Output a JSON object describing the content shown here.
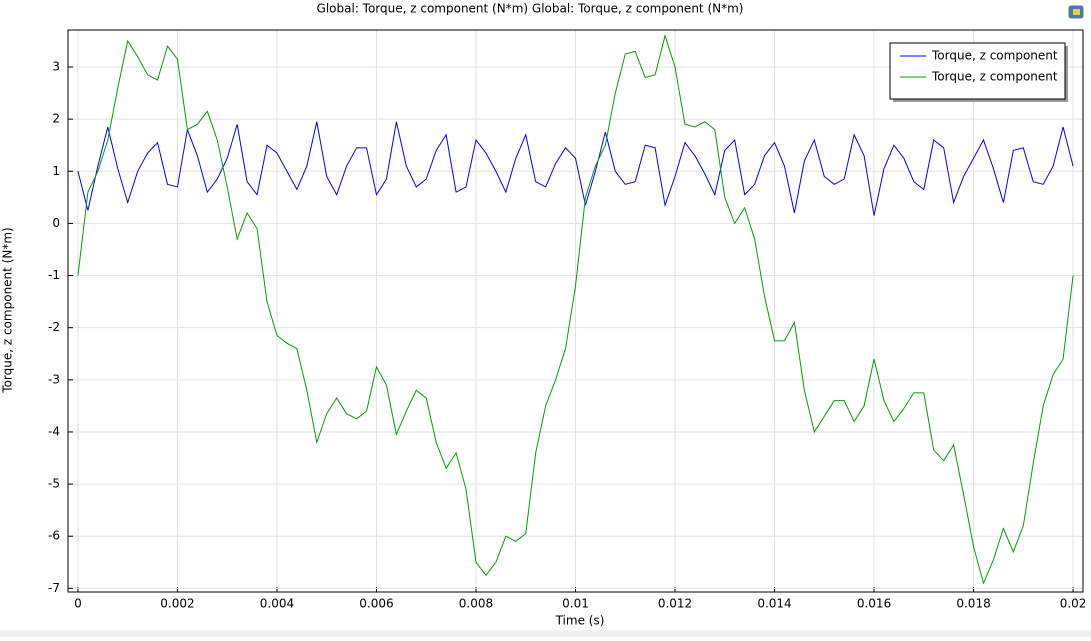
{
  "chart_data": {
    "type": "line",
    "title": "Global: Torque, z component (N*m)  Global: Torque, z component (N*m)",
    "x_label": "Time (s)",
    "y_label": "Torque, z component (N*m)",
    "x": [
      0,
      0.0002,
      0.0004,
      0.0006,
      0.0008,
      0.001,
      0.0012,
      0.0014,
      0.0016,
      0.0018,
      0.002,
      0.0022,
      0.0024,
      0.0026,
      0.0028,
      0.003,
      0.0032,
      0.0034,
      0.0036,
      0.0038,
      0.004,
      0.0042,
      0.0044,
      0.0046,
      0.0048,
      0.005,
      0.0052,
      0.0054,
      0.0056,
      0.0058,
      0.006,
      0.0062,
      0.0064,
      0.0066,
      0.0068,
      0.007,
      0.0072,
      0.0074,
      0.0076,
      0.0078,
      0.008,
      0.0082,
      0.0084,
      0.0086,
      0.0088,
      0.009,
      0.0092,
      0.0094,
      0.0096,
      0.0098,
      0.01,
      0.0102,
      0.0104,
      0.0106,
      0.0108,
      0.011,
      0.0112,
      0.0114,
      0.0116,
      0.0118,
      0.012,
      0.0122,
      0.0124,
      0.0126,
      0.0128,
      0.013,
      0.0132,
      0.0134,
      0.0136,
      0.0138,
      0.014,
      0.0142,
      0.0144,
      0.0146,
      0.0148,
      0.015,
      0.0152,
      0.0154,
      0.0156,
      0.0158,
      0.016,
      0.0162,
      0.0164,
      0.0166,
      0.0168,
      0.017,
      0.0172,
      0.0174,
      0.0176,
      0.0178,
      0.018,
      0.0182,
      0.0184,
      0.0186,
      0.0188,
      0.019,
      0.0192,
      0.0194,
      0.0196,
      0.0198,
      0.02
    ],
    "series": [
      {
        "name": "Torque, z component",
        "color": "#0000ff",
        "values": [
          1.0,
          0.25,
          1.1,
          1.85,
          1.05,
          0.4,
          1.0,
          1.35,
          1.55,
          0.75,
          0.7,
          1.8,
          1.3,
          0.6,
          0.85,
          1.25,
          1.9,
          0.8,
          0.55,
          1.5,
          1.35,
          1.0,
          0.65,
          1.1,
          1.95,
          0.9,
          0.55,
          1.1,
          1.45,
          1.45,
          0.55,
          0.85,
          1.95,
          1.1,
          0.7,
          0.85,
          1.4,
          1.7,
          0.6,
          0.7,
          1.6,
          1.35,
          1.0,
          0.6,
          1.25,
          1.7,
          0.8,
          0.7,
          1.15,
          1.45,
          1.25,
          0.35,
          1.0,
          1.75,
          1.0,
          0.75,
          0.8,
          1.5,
          1.45,
          0.35,
          0.9,
          1.55,
          1.3,
          0.95,
          0.55,
          1.4,
          1.6,
          0.55,
          0.75,
          1.3,
          1.55,
          1.1,
          0.2,
          1.2,
          1.6,
          0.9,
          0.75,
          0.85,
          1.7,
          1.3,
          0.15,
          1.05,
          1.5,
          1.25,
          0.8,
          0.65,
          1.6,
          1.45,
          0.4,
          0.9,
          1.25,
          1.6,
          1.05,
          0.4,
          1.4,
          1.45,
          0.8,
          0.75,
          1.1,
          1.85,
          1.1
        ]
      },
      {
        "name": "Torque, z component",
        "color": "#00a000",
        "values": [
          -1.0,
          0.6,
          1.0,
          1.6,
          2.6,
          3.5,
          3.2,
          2.85,
          2.75,
          3.4,
          3.15,
          1.8,
          1.9,
          2.15,
          1.6,
          0.7,
          -0.3,
          0.2,
          -0.1,
          -1.5,
          -2.15,
          -2.3,
          -2.4,
          -3.2,
          -4.2,
          -3.65,
          -3.35,
          -3.65,
          -3.75,
          -3.6,
          -2.75,
          -3.1,
          -4.05,
          -3.6,
          -3.2,
          -3.35,
          -4.2,
          -4.7,
          -4.4,
          -5.1,
          -6.5,
          -6.75,
          -6.5,
          -6.0,
          -6.1,
          -5.95,
          -4.4,
          -3.5,
          -3.0,
          -2.4,
          -1.2,
          0.5,
          1.1,
          1.5,
          2.5,
          3.25,
          3.3,
          2.8,
          2.85,
          3.6,
          3.0,
          1.9,
          1.85,
          1.95,
          1.8,
          0.5,
          0.0,
          0.3,
          -0.3,
          -1.4,
          -2.25,
          -2.25,
          -1.9,
          -3.2,
          -4.0,
          -3.7,
          -3.4,
          -3.4,
          -3.8,
          -3.5,
          -2.6,
          -3.4,
          -3.8,
          -3.55,
          -3.25,
          -3.25,
          -4.35,
          -4.55,
          -4.25,
          -5.2,
          -6.2,
          -6.9,
          -6.45,
          -5.85,
          -6.3,
          -5.8,
          -4.6,
          -3.5,
          -2.9,
          -2.6,
          -1.0
        ]
      }
    ],
    "xlim": [
      -0.0002,
      0.0202
    ],
    "ylim": [
      -7.07,
      3.71
    ],
    "xticks": [
      0,
      0.002,
      0.004,
      0.006,
      0.008,
      0.01,
      0.012,
      0.014,
      0.016,
      0.018,
      0.02
    ],
    "yticks": [
      -7,
      -6,
      -5,
      -4,
      -3,
      -2,
      -1,
      0,
      1,
      2,
      3
    ],
    "grid": true,
    "legend": "upper right"
  }
}
